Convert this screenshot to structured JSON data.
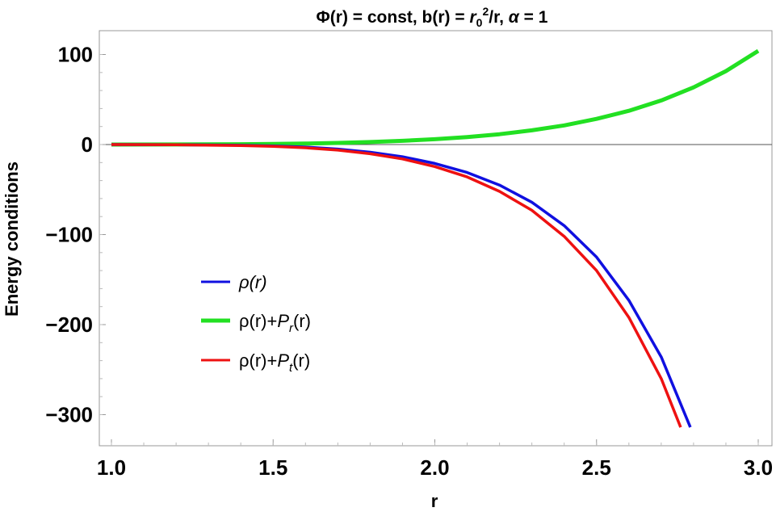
{
  "chart_data": {
    "type": "line",
    "title": {
      "prefix": "Φ(r) = const, b(r) = ",
      "r": "r",
      "sub0": "0",
      "sup2": "2",
      "suffix1": "/r, ",
      "alpha": "α",
      "suffix2": " = 1"
    },
    "xlabel": "r",
    "ylabel": "Energy conditions",
    "xlim": [
      1.0,
      3.0
    ],
    "ylim": [
      -335,
      125
    ],
    "xticks": [
      {
        "value": 1.0,
        "label": "1.0"
      },
      {
        "value": 1.5,
        "label": "1.5"
      },
      {
        "value": 2.0,
        "label": "2.0"
      },
      {
        "value": 2.5,
        "label": "2.5"
      },
      {
        "value": 3.0,
        "label": "3.0"
      }
    ],
    "yticks": [
      {
        "value": 100,
        "label": "100"
      },
      {
        "value": 0,
        "label": "0"
      },
      {
        "value": -100,
        "label": "−100"
      },
      {
        "value": -200,
        "label": "−200"
      },
      {
        "value": -300,
        "label": "−300"
      }
    ],
    "grid": false,
    "legend_position": "left-center",
    "series": [
      {
        "legend": {
          "main": "ρ(r)"
        },
        "color": "#1010e0",
        "x": [
          1.0,
          1.2,
          1.4,
          1.5,
          1.6,
          1.7,
          1.8,
          1.9,
          2.0,
          2.1,
          2.2,
          2.3,
          2.4,
          2.5,
          2.6,
          2.7,
          2.79
        ],
        "y": [
          0,
          -0.2,
          -0.8,
          -1.5,
          -2.8,
          -5,
          -8.5,
          -13.5,
          -21,
          -31,
          -45,
          -64,
          -90,
          -125,
          -173,
          -236,
          -314
        ]
      },
      {
        "legend": {
          "main": "ρ(r)+",
          "sym": "P",
          "sub": "r",
          "end": "(r)"
        },
        "color": "#22e022",
        "x": [
          1.0,
          1.2,
          1.4,
          1.5,
          1.6,
          1.7,
          1.8,
          1.9,
          2.0,
          2.1,
          2.2,
          2.3,
          2.4,
          2.5,
          2.6,
          2.7,
          2.8,
          2.9,
          3.0
        ],
        "y": [
          0,
          0.1,
          0.4,
          0.7,
          1.1,
          1.8,
          2.8,
          4.1,
          5.9,
          8.3,
          11.5,
          15.8,
          21.3,
          28.5,
          37.5,
          49,
          63.5,
          81.5,
          104
        ]
      },
      {
        "legend": {
          "main": "ρ(r)+",
          "sym": "P",
          "sub": "t",
          "end": "(r)"
        },
        "color": "#ee1111",
        "x": [
          1.0,
          1.2,
          1.4,
          1.5,
          1.6,
          1.7,
          1.8,
          1.9,
          2.0,
          2.1,
          2.2,
          2.3,
          2.4,
          2.5,
          2.6,
          2.7,
          2.76
        ],
        "y": [
          0,
          -0.3,
          -1.1,
          -2.0,
          -3.6,
          -6.2,
          -10.2,
          -16,
          -24.5,
          -36,
          -52,
          -73,
          -102,
          -140,
          -192,
          -260,
          -314
        ]
      }
    ]
  }
}
